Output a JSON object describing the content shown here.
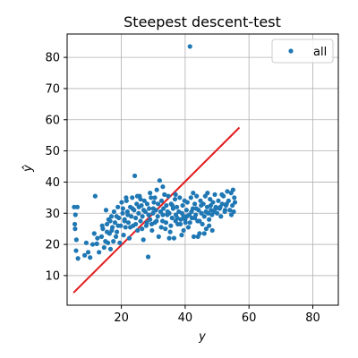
{
  "chart_data": {
    "type": "scatter",
    "title": "Steepest descent-test",
    "xlabel": "y",
    "ylabel": "ŷ",
    "xlim": [
      3,
      88
    ],
    "ylim": [
      0.5,
      87.5
    ],
    "xticks": [
      20,
      40,
      60,
      80
    ],
    "yticks": [
      10,
      20,
      30,
      40,
      50,
      60,
      70,
      80
    ],
    "grid": true,
    "legend": {
      "position": "top-right",
      "entries": [
        "all"
      ]
    },
    "colors": {
      "points": "#1f77b4",
      "fit_line": "#e31a1c",
      "grid": "#b0b0b0"
    },
    "fit_line": {
      "x": [
        5,
        57
      ],
      "y": [
        4.5,
        57.5
      ]
    },
    "series": [
      {
        "name": "all",
        "points": [
          [
            5.2,
            32.0
          ],
          [
            5.4,
            26.5
          ],
          [
            5.5,
            25.0
          ],
          [
            5.6,
            29.5
          ],
          [
            5.8,
            18.0
          ],
          [
            5.9,
            21.5
          ],
          [
            6.2,
            32.0
          ],
          [
            6.4,
            15.5
          ],
          [
            8.5,
            16.5
          ],
          [
            9.0,
            20.5
          ],
          [
            9.6,
            17.5
          ],
          [
            10.2,
            15.8
          ],
          [
            11.0,
            20.0
          ],
          [
            11.5,
            23.5
          ],
          [
            11.8,
            35.5
          ],
          [
            12.3,
            20.2
          ],
          [
            13.0,
            17.5
          ],
          [
            13.8,
            22.5
          ],
          [
            14.2,
            25.0
          ],
          [
            14.6,
            19.0
          ],
          [
            15.0,
            21.0
          ],
          [
            15.2,
            31.0
          ],
          [
            15.5,
            26.5
          ],
          [
            15.8,
            20.5
          ],
          [
            16.0,
            28.0
          ],
          [
            16.3,
            23.5
          ],
          [
            16.6,
            18.5
          ],
          [
            16.9,
            29.0
          ],
          [
            17.2,
            25.5
          ],
          [
            17.5,
            21.0
          ],
          [
            17.7,
            30.5
          ],
          [
            18.0,
            27.0
          ],
          [
            18.3,
            22.5
          ],
          [
            18.6,
            24.0
          ],
          [
            18.9,
            32.0
          ],
          [
            19.2,
            28.5
          ],
          [
            19.5,
            20.5
          ],
          [
            19.8,
            26.0
          ],
          [
            20.1,
            33.5
          ],
          [
            20.4,
            30.0
          ],
          [
            20.7,
            23.0
          ],
          [
            21.0,
            28.0
          ],
          [
            21.3,
            25.5
          ],
          [
            21.6,
            34.0
          ],
          [
            21.9,
            30.5
          ],
          [
            22.2,
            27.0
          ],
          [
            22.5,
            22.0
          ],
          [
            22.8,
            32.0
          ],
          [
            23.1,
            29.0
          ],
          [
            23.4,
            35.0
          ],
          [
            23.7,
            26.0
          ],
          [
            24.0,
            31.0
          ],
          [
            24.2,
            42.0
          ],
          [
            24.5,
            28.5
          ],
          [
            24.8,
            33.0
          ],
          [
            25.1,
            24.5
          ],
          [
            25.4,
            30.0
          ],
          [
            25.7,
            35.5
          ],
          [
            26.0,
            27.5
          ],
          [
            26.3,
            32.5
          ],
          [
            26.6,
            29.0
          ],
          [
            26.9,
            21.5
          ],
          [
            27.2,
            34.0
          ],
          [
            27.5,
            30.5
          ],
          [
            27.8,
            26.0
          ],
          [
            28.1,
            33.0
          ],
          [
            28.4,
            16.0
          ],
          [
            28.7,
            31.5
          ],
          [
            29.0,
            28.0
          ],
          [
            29.3,
            35.0
          ],
          [
            29.6,
            24.5
          ],
          [
            29.9,
            30.0
          ],
          [
            30.2,
            33.5
          ],
          [
            30.5,
            27.0
          ],
          [
            30.8,
            31.0
          ],
          [
            31.1,
            37.5
          ],
          [
            31.4,
            29.0
          ],
          [
            31.7,
            22.5
          ],
          [
            32.0,
            40.5
          ],
          [
            32.3,
            30.5
          ],
          [
            32.6,
            34.0
          ],
          [
            32.9,
            27.5
          ],
          [
            33.2,
            31.5
          ],
          [
            33.5,
            36.0
          ],
          [
            33.8,
            25.0
          ],
          [
            34.1,
            32.5
          ],
          [
            34.4,
            29.5
          ],
          [
            34.7,
            35.5
          ],
          [
            35.0,
            30.0
          ],
          [
            35.3,
            24.0
          ],
          [
            35.6,
            33.0
          ],
          [
            35.9,
            28.5
          ],
          [
            36.2,
            31.5
          ],
          [
            36.5,
            22.0
          ],
          [
            36.8,
            34.5
          ],
          [
            37.1,
            29.5
          ],
          [
            37.4,
            32.0
          ],
          [
            37.7,
            26.5
          ],
          [
            38.0,
            30.5
          ],
          [
            38.3,
            35.0
          ],
          [
            38.6,
            28.0
          ],
          [
            38.9,
            23.0
          ],
          [
            39.2,
            32.5
          ],
          [
            39.5,
            29.0
          ],
          [
            39.8,
            34.0
          ],
          [
            40.1,
            27.0
          ],
          [
            40.4,
            31.0
          ],
          [
            40.7,
            33.5
          ],
          [
            41.0,
            25.5
          ],
          [
            41.3,
            29.5
          ],
          [
            41.5,
            83.5
          ],
          [
            41.8,
            35.0
          ],
          [
            42.1,
            28.5
          ],
          [
            42.4,
            31.5
          ],
          [
            42.7,
            22.5
          ],
          [
            43.0,
            33.0
          ],
          [
            43.3,
            29.5
          ],
          [
            43.6,
            35.5
          ],
          [
            43.9,
            27.5
          ],
          [
            44.2,
            31.0
          ],
          [
            44.5,
            23.5
          ],
          [
            44.8,
            34.0
          ],
          [
            45.1,
            30.0
          ],
          [
            45.4,
            26.5
          ],
          [
            45.7,
            33.0
          ],
          [
            46.0,
            29.0
          ],
          [
            46.3,
            35.5
          ],
          [
            46.6,
            25.0
          ],
          [
            46.9,
            32.0
          ],
          [
            47.2,
            30.0
          ],
          [
            47.5,
            26.0
          ],
          [
            47.8,
            34.5
          ],
          [
            48.1,
            31.0
          ],
          [
            48.4,
            29.5
          ],
          [
            48.7,
            33.5
          ],
          [
            49.0,
            30.5
          ],
          [
            49.3,
            36.0
          ],
          [
            49.6,
            32.0
          ],
          [
            50.0,
            30.0
          ],
          [
            50.4,
            34.0
          ],
          [
            50.8,
            31.5
          ],
          [
            51.2,
            29.0
          ],
          [
            51.6,
            33.0
          ],
          [
            52.0,
            35.5
          ],
          [
            52.4,
            30.5
          ],
          [
            52.8,
            32.5
          ],
          [
            53.2,
            37.0
          ],
          [
            53.6,
            34.0
          ],
          [
            54.0,
            31.0
          ],
          [
            54.4,
            36.5
          ],
          [
            54.8,
            32.5
          ],
          [
            55.2,
            30.5
          ],
          [
            55.4,
            35.0
          ],
          [
            55.6,
            33.5
          ],
          [
            14.0,
            26.0
          ],
          [
            16.5,
            27.5
          ],
          [
            18.5,
            29.0
          ],
          [
            20.5,
            31.5
          ],
          [
            22.0,
            29.5
          ],
          [
            23.5,
            31.5
          ],
          [
            25.5,
            32.0
          ],
          [
            27.0,
            31.0
          ],
          [
            28.5,
            29.5
          ],
          [
            30.0,
            31.5
          ],
          [
            31.5,
            33.0
          ],
          [
            33.0,
            29.5
          ],
          [
            34.5,
            30.5
          ],
          [
            36.0,
            32.5
          ],
          [
            37.5,
            28.5
          ],
          [
            39.0,
            30.0
          ],
          [
            40.5,
            29.0
          ],
          [
            42.0,
            30.5
          ],
          [
            43.5,
            31.5
          ],
          [
            45.0,
            32.5
          ],
          [
            46.5,
            30.5
          ],
          [
            48.0,
            32.5
          ],
          [
            49.5,
            31.5
          ],
          [
            51.0,
            32.0
          ],
          [
            53.0,
            33.0
          ],
          [
            17.0,
            24.5
          ],
          [
            19.0,
            26.0
          ],
          [
            21.0,
            27.5
          ],
          [
            22.8,
            25.5
          ],
          [
            24.5,
            26.5
          ],
          [
            26.5,
            25.0
          ],
          [
            28.0,
            27.0
          ],
          [
            29.5,
            26.5
          ],
          [
            31.0,
            27.5
          ],
          [
            32.5,
            25.5
          ],
          [
            34.0,
            27.0
          ],
          [
            35.5,
            26.0
          ],
          [
            37.0,
            27.5
          ],
          [
            38.5,
            26.5
          ],
          [
            40.0,
            28.0
          ],
          [
            41.5,
            27.0
          ],
          [
            43.0,
            28.5
          ],
          [
            44.5,
            27.5
          ],
          [
            46.0,
            23.5
          ],
          [
            47.5,
            28.0
          ],
          [
            21.5,
            35.0
          ],
          [
            25.0,
            35.5
          ],
          [
            29.0,
            36.5
          ],
          [
            33.0,
            38.5
          ],
          [
            37.0,
            36.0
          ],
          [
            42.5,
            36.5
          ],
          [
            47.0,
            36.5
          ],
          [
            51.5,
            36.0
          ],
          [
            55.0,
            37.5
          ],
          [
            12.5,
            22.0
          ],
          [
            15.5,
            24.0
          ],
          [
            26.0,
            34.5
          ],
          [
            30.5,
            35.0
          ],
          [
            35.0,
            22.0
          ],
          [
            39.5,
            24.5
          ],
          [
            44.0,
            22.5
          ],
          [
            48.5,
            24.5
          ],
          [
            52.5,
            31.0
          ],
          [
            54.5,
            29.5
          ]
        ]
      }
    ]
  }
}
